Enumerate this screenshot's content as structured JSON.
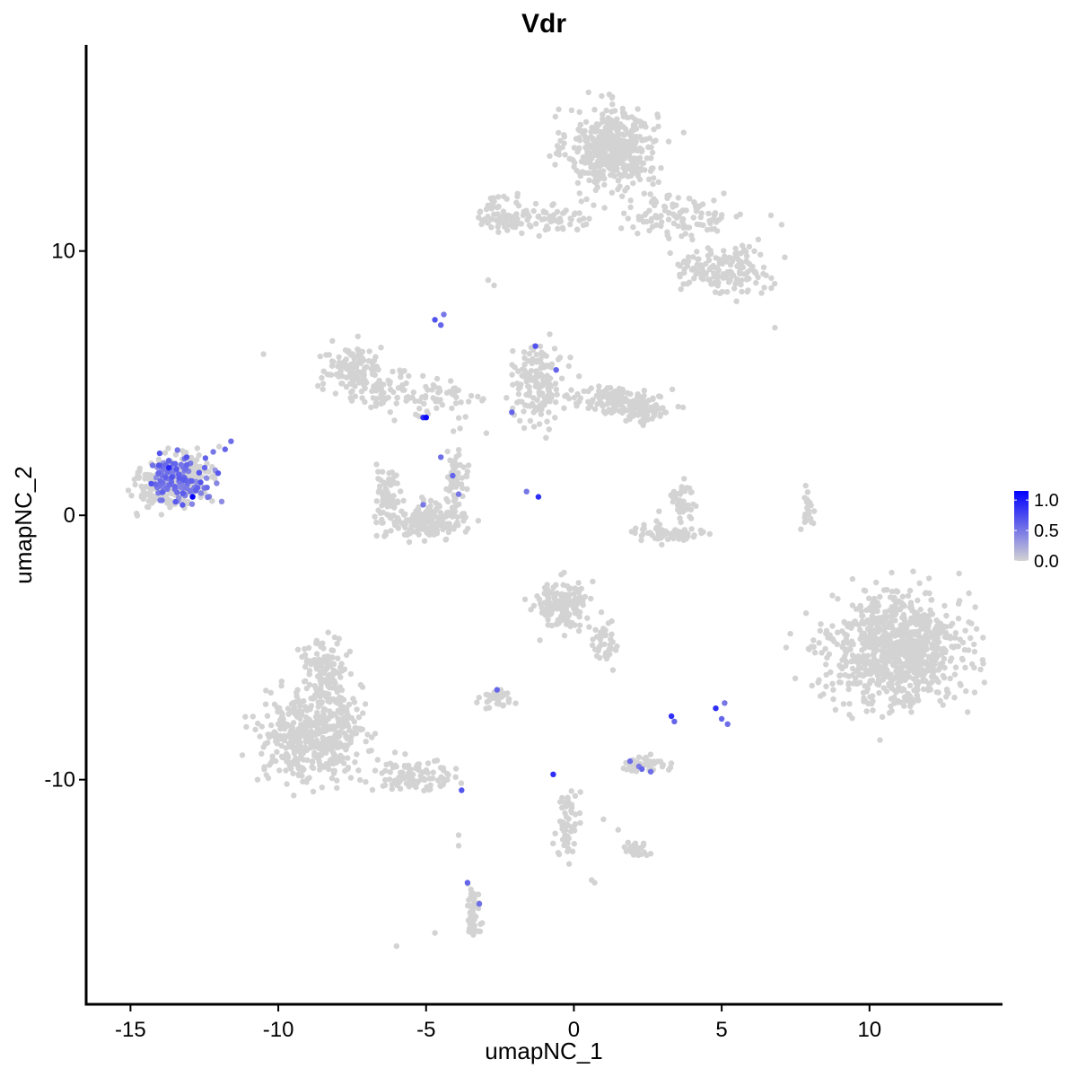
{
  "chart_data": {
    "type": "scatter",
    "title": "Vdr",
    "xlabel": "umapNC_1",
    "ylabel": "umapNC_2",
    "xlim": [
      -16.5,
      14.5
    ],
    "ylim": [
      -18.5,
      17.8
    ],
    "x_ticks": [
      {
        "value": -15,
        "label": "-15"
      },
      {
        "value": -10,
        "label": "-10"
      },
      {
        "value": -5,
        "label": "-5"
      },
      {
        "value": 0,
        "label": "0"
      },
      {
        "value": 5,
        "label": "5"
      },
      {
        "value": 10,
        "label": "10"
      }
    ],
    "y_ticks": [
      {
        "value": 10,
        "label": "10"
      },
      {
        "value": 0,
        "label": "0"
      },
      {
        "value": -10,
        "label": "-10"
      }
    ],
    "grid": false,
    "color_scale": {
      "low_color": "#d3d3d3",
      "high_color": "#0000ff",
      "min": 0.0,
      "max": 1.15,
      "ticks": [
        {
          "value": 1.0,
          "label": "1.0"
        },
        {
          "value": 0.5,
          "label": "0.5"
        },
        {
          "value": 0.0,
          "label": "0.0"
        }
      ],
      "legend_placement": "right"
    },
    "clusters": [
      {
        "cx": 1.3,
        "cy": 13.9,
        "sx": 1.0,
        "sy": 1.0,
        "n": 450,
        "expr": []
      },
      {
        "cx": 3.5,
        "cy": 11.4,
        "sx": 1.6,
        "sy": 0.6,
        "n": 120,
        "expr": []
      },
      {
        "cx": 5.4,
        "cy": 9.3,
        "sx": 0.8,
        "sy": 0.6,
        "n": 110,
        "expr": []
      },
      {
        "cx": 4.2,
        "cy": 9.3,
        "sx": 0.5,
        "sy": 0.4,
        "n": 40,
        "expr": []
      },
      {
        "cx": -2.3,
        "cy": 11.4,
        "sx": 0.6,
        "sy": 0.5,
        "n": 80,
        "expr": []
      },
      {
        "cx": -0.6,
        "cy": 11.2,
        "sx": 0.8,
        "sy": 0.3,
        "n": 50,
        "expr": []
      },
      {
        "cx": -7.5,
        "cy": 5.5,
        "sx": 0.7,
        "sy": 0.6,
        "n": 120,
        "expr": []
      },
      {
        "cx": -6.3,
        "cy": 4.6,
        "sx": 0.8,
        "sy": 0.5,
        "n": 70,
        "expr": []
      },
      {
        "cx": -4.2,
        "cy": 4.5,
        "sx": 0.7,
        "sy": 0.4,
        "n": 40,
        "expr": []
      },
      {
        "cx": -5.0,
        "cy": -0.2,
        "sx": 0.9,
        "sy": 0.45,
        "n": 190,
        "expr": []
      },
      {
        "cx": -6.3,
        "cy": 0.8,
        "sx": 0.3,
        "sy": 0.7,
        "n": 60,
        "expr": []
      },
      {
        "cx": -4.0,
        "cy": 1.3,
        "sx": 0.3,
        "sy": 0.8,
        "n": 50,
        "expr": []
      },
      {
        "cx": -1.2,
        "cy": 5.0,
        "sx": 0.6,
        "sy": 0.9,
        "n": 150,
        "expr": [
          {
            "x": -1.3,
            "y": 6.4,
            "v": 0.7
          },
          {
            "x": -0.6,
            "y": 5.5,
            "v": 0.6
          }
        ]
      },
      {
        "cx": 1.2,
        "cy": 4.4,
        "sx": 0.9,
        "sy": 0.35,
        "n": 100,
        "expr": []
      },
      {
        "cx": 2.3,
        "cy": 4.0,
        "sx": 0.7,
        "sy": 0.35,
        "n": 70,
        "expr": []
      },
      {
        "cx": 3.2,
        "cy": -0.7,
        "sx": 0.9,
        "sy": 0.25,
        "n": 70,
        "expr": []
      },
      {
        "cx": 3.6,
        "cy": 0.6,
        "sx": 0.3,
        "sy": 0.6,
        "n": 40,
        "expr": []
      },
      {
        "cx": 7.9,
        "cy": 0.2,
        "sx": 0.15,
        "sy": 0.6,
        "n": 20,
        "expr": []
      },
      {
        "cx": 10.9,
        "cy": -5.1,
        "sx": 1.5,
        "sy": 1.4,
        "n": 900,
        "expr": []
      },
      {
        "cx": -0.4,
        "cy": -3.4,
        "sx": 0.6,
        "sy": 0.6,
        "n": 150,
        "expr": []
      },
      {
        "cx": 1.0,
        "cy": -4.8,
        "sx": 0.3,
        "sy": 0.6,
        "n": 40,
        "expr": []
      },
      {
        "cx": -8.8,
        "cy": -8.3,
        "sx": 1.1,
        "sy": 1.1,
        "n": 500,
        "expr": []
      },
      {
        "cx": -8.4,
        "cy": -5.8,
        "sx": 0.5,
        "sy": 0.7,
        "n": 120,
        "expr": []
      },
      {
        "cx": -5.5,
        "cy": -9.8,
        "sx": 1.0,
        "sy": 0.4,
        "n": 100,
        "expr": [
          {
            "x": -3.8,
            "y": -10.4,
            "v": 0.7
          }
        ]
      },
      {
        "cx": -2.6,
        "cy": -6.9,
        "sx": 0.4,
        "sy": 0.2,
        "n": 40,
        "expr": [
          {
            "x": -2.6,
            "y": -6.6,
            "v": 0.6
          }
        ]
      },
      {
        "cx": 2.4,
        "cy": -9.4,
        "sx": 0.45,
        "sy": 0.2,
        "n": 50,
        "expr": [
          {
            "x": 1.9,
            "y": -9.3,
            "v": 0.55
          },
          {
            "x": 2.3,
            "y": -9.6,
            "v": 0.6
          },
          {
            "x": 2.6,
            "y": -9.7,
            "v": 0.55
          },
          {
            "x": 2.2,
            "y": -9.5,
            "v": 0.5
          }
        ]
      },
      {
        "cx": -0.2,
        "cy": -11.6,
        "sx": 0.25,
        "sy": 0.9,
        "n": 60,
        "expr": [
          {
            "x": -0.7,
            "y": -9.8,
            "v": 0.9
          }
        ]
      },
      {
        "cx": 2.2,
        "cy": -12.7,
        "sx": 0.3,
        "sy": 0.2,
        "n": 25,
        "expr": []
      },
      {
        "cx": -3.4,
        "cy": -14.9,
        "sx": 0.25,
        "sy": 0.7,
        "n": 40,
        "expr": [
          {
            "x": -3.6,
            "y": -13.9,
            "v": 0.6
          },
          {
            "x": -3.2,
            "y": -14.7,
            "v": 0.55
          }
        ]
      },
      {
        "cx": -14.2,
        "cy": 1.0,
        "sx": 0.5,
        "sy": 0.5,
        "n": 80,
        "expr": []
      },
      {
        "cx": -13.2,
        "cy": 1.4,
        "sx": 0.55,
        "sy": 0.55,
        "n": 200,
        "expr": [
          {
            "x": -12.9,
            "y": 0.7,
            "v": 1.15
          },
          {
            "x": -13.7,
            "y": 1.8,
            "v": 0.95
          },
          {
            "x": -13.1,
            "y": 2.2,
            "v": 0.7
          },
          {
            "x": -14.3,
            "y": 1.2,
            "v": 0.7
          }
        ]
      }
    ],
    "singles": [
      {
        "x": -10.5,
        "y": 6.1,
        "v": 0
      },
      {
        "x": 6.8,
        "y": 7.1,
        "v": 0
      },
      {
        "x": -2.9,
        "y": 8.9,
        "v": 0
      },
      {
        "x": -2.7,
        "y": 8.7,
        "v": 0
      },
      {
        "x": -4.7,
        "y": 7.4,
        "v": 0.7
      },
      {
        "x": -4.5,
        "y": 7.2,
        "v": 0.6
      },
      {
        "x": -4.4,
        "y": 7.6,
        "v": 0.5
      },
      {
        "x": -5.0,
        "y": 3.7,
        "v": 1.1
      },
      {
        "x": -5.1,
        "y": 3.7,
        "v": 0.9
      },
      {
        "x": -2.1,
        "y": 3.9,
        "v": 0.6
      },
      {
        "x": -1.2,
        "y": 0.7,
        "v": 0.9
      },
      {
        "x": -1.6,
        "y": 0.9,
        "v": 0.5
      },
      {
        "x": -4.5,
        "y": 2.2,
        "v": 0.55
      },
      {
        "x": -4.1,
        "y": 1.5,
        "v": 0.6
      },
      {
        "x": -3.9,
        "y": 0.8,
        "v": 0.5
      },
      {
        "x": -5.1,
        "y": 0.4,
        "v": 0.5
      },
      {
        "x": 3.3,
        "y": -7.6,
        "v": 0.9
      },
      {
        "x": 3.4,
        "y": -7.8,
        "v": 0.6
      },
      {
        "x": 4.8,
        "y": -7.3,
        "v": 0.9
      },
      {
        "x": 5.0,
        "y": -7.7,
        "v": 0.6
      },
      {
        "x": 5.2,
        "y": -7.9,
        "v": 0.55
      },
      {
        "x": 5.1,
        "y": -7.1,
        "v": 0.5
      },
      {
        "x": -11.8,
        "y": 2.5,
        "v": 0.6
      },
      {
        "x": -11.6,
        "y": 2.8,
        "v": 0.55
      },
      {
        "x": -12.2,
        "y": 2.4,
        "v": 0.5
      },
      {
        "x": -12.0,
        "y": 2.6,
        "v": 0
      },
      {
        "x": -3.9,
        "y": -12.1,
        "v": 0
      },
      {
        "x": -3.9,
        "y": -12.5,
        "v": 0
      },
      {
        "x": -4.7,
        "y": -15.8,
        "v": 0
      },
      {
        "x": -6.0,
        "y": -16.3,
        "v": 0
      },
      {
        "x": 0.7,
        "y": -13.9,
        "v": 0
      },
      {
        "x": 0.6,
        "y": -13.8,
        "v": 0
      },
      {
        "x": 1.5,
        "y": -11.9,
        "v": 0
      },
      {
        "x": 1.0,
        "y": -11.5,
        "v": 0
      },
      {
        "x": -10.7,
        "y": -10.0,
        "v": 0
      },
      {
        "x": -8.3,
        "y": -9.6,
        "v": 0
      },
      {
        "x": 8.1,
        "y": -0.3,
        "v": 0
      },
      {
        "x": 5.5,
        "y": 8.1,
        "v": 0
      }
    ]
  }
}
